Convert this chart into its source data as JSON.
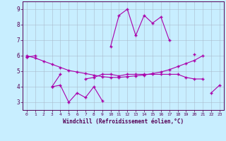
{
  "x": [
    0,
    1,
    2,
    3,
    4,
    5,
    6,
    7,
    8,
    9,
    10,
    11,
    12,
    13,
    14,
    15,
    16,
    17,
    18,
    19,
    20,
    21,
    22,
    23
  ],
  "line1": [
    5.9,
    6.0,
    null,
    null,
    null,
    null,
    null,
    null,
    null,
    null,
    6.6,
    8.6,
    9.0,
    7.3,
    8.6,
    8.1,
    8.5,
    7.0,
    null,
    null,
    6.1,
    null,
    null,
    null
  ],
  "line2": [
    5.9,
    null,
    null,
    4.0,
    4.1,
    3.0,
    3.6,
    3.3,
    4.0,
    3.1,
    null,
    null,
    null,
    null,
    null,
    null,
    null,
    null,
    null,
    null,
    null,
    null,
    3.6,
    4.1
  ],
  "line3": [
    null,
    null,
    null,
    4.0,
    4.8,
    null,
    null,
    4.5,
    4.6,
    4.8,
    4.8,
    4.7,
    4.8,
    4.8,
    4.8,
    4.8,
    4.8,
    4.8,
    4.8,
    4.6,
    4.5,
    4.5,
    null,
    null
  ],
  "line4": [
    6.0,
    5.85,
    5.65,
    5.45,
    5.25,
    5.05,
    4.95,
    4.85,
    4.75,
    4.65,
    4.6,
    4.6,
    4.65,
    4.7,
    4.75,
    4.85,
    4.95,
    5.1,
    5.3,
    5.5,
    5.7,
    6.0,
    null,
    null
  ],
  "xlabel": "Windchill (Refroidissement éolien,°C)",
  "ylim": [
    2.5,
    9.5
  ],
  "xlim": [
    -0.5,
    23.5
  ],
  "yticks": [
    3,
    4,
    5,
    6,
    7,
    8,
    9
  ],
  "xticks": [
    0,
    1,
    2,
    3,
    4,
    5,
    6,
    7,
    8,
    9,
    10,
    11,
    12,
    13,
    14,
    15,
    16,
    17,
    18,
    19,
    20,
    21,
    22,
    23
  ],
  "line_color": "#aa00aa",
  "bg_color": "#c8eeff",
  "grid_color": "#aabbcc",
  "marker": "+"
}
